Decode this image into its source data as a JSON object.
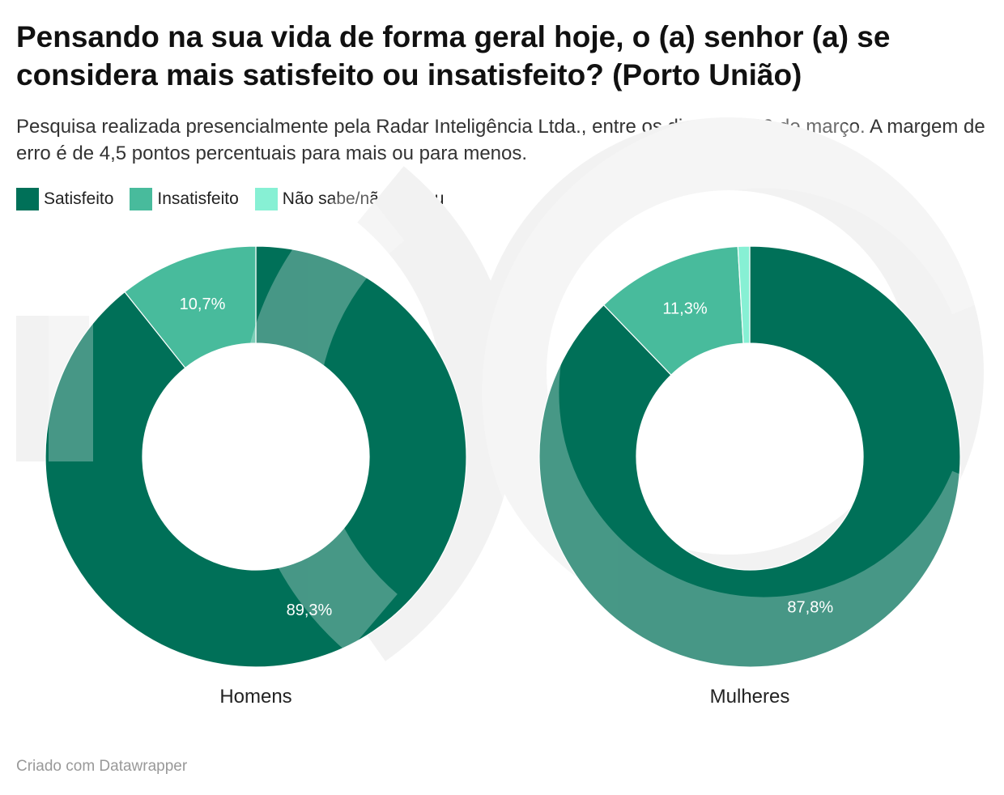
{
  "title": "Pensando na sua vida de forma geral hoje, o (a) senhor (a) se considera mais satisfeito ou insatisfeito? (Porto União)",
  "subtitle": "Pesquisa realizada presencialmente pela Radar Inteligência Ltda., entre os dias 18 e 20 de março. A margem de erro é de 4,5 pontos percentuais para mais ou para menos.",
  "legend": [
    {
      "label": "Satisfeito",
      "color": "#007058"
    },
    {
      "label": "Insatisfeito",
      "color": "#48bb9c"
    },
    {
      "label": "Não sabe/não opinou",
      "color": "#87f0d4"
    }
  ],
  "footer": "Criado com Datawrapper",
  "chart_data": [
    {
      "type": "pie",
      "title": "Homens",
      "categories": [
        "Satisfeito",
        "Insatisfeito",
        "Não sabe/não opinou"
      ],
      "values": [
        89.3,
        10.7,
        0
      ],
      "labels": [
        "89,3%",
        "10,7%",
        ""
      ],
      "colors": [
        "#007058",
        "#48bb9c",
        "#87f0d4"
      ]
    },
    {
      "type": "pie",
      "title": "Mulheres",
      "categories": [
        "Satisfeito",
        "Insatisfeito",
        "Não sabe/não opinou"
      ],
      "values": [
        87.8,
        11.3,
        0.9
      ],
      "labels": [
        "87,8%",
        "11,3%",
        ""
      ],
      "colors": [
        "#007058",
        "#48bb9c",
        "#87f0d4"
      ]
    }
  ]
}
